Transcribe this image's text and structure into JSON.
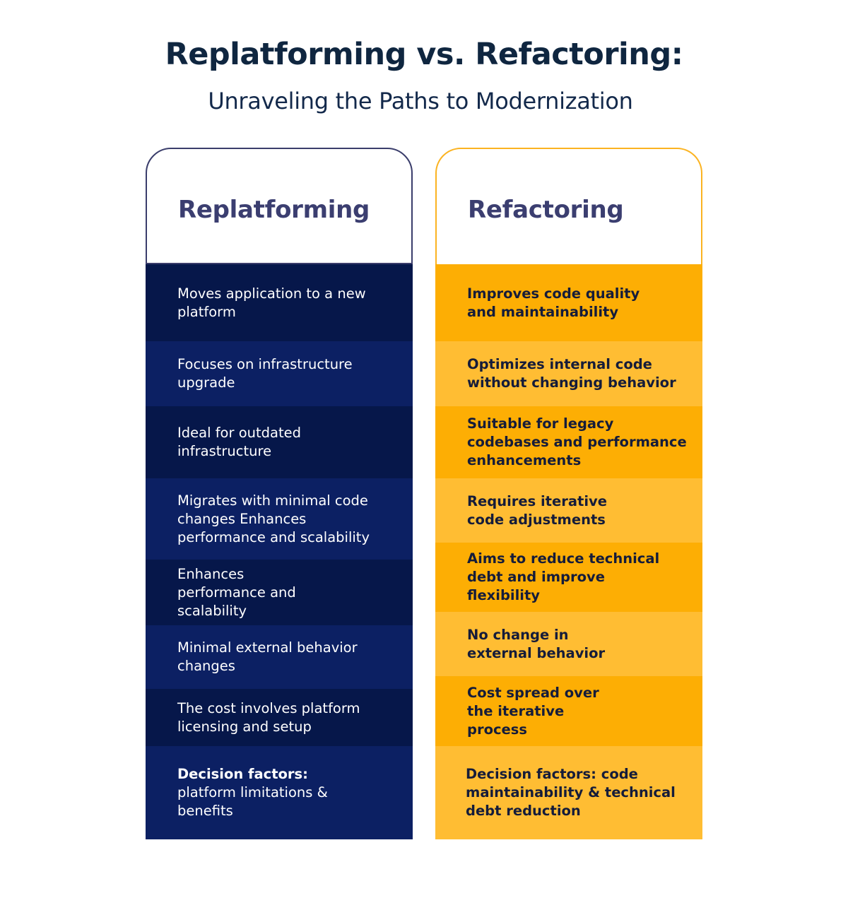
{
  "title": "Replatforming vs. Refactoring:",
  "subtitle": "Unraveling the Paths to Modernization",
  "replatforming": {
    "heading": "Replatforming",
    "rows": [
      "Moves application to a new platform",
      "Focuses on infrastructure upgrade",
      "Ideal for outdated infrastructure",
      "Migrates with minimal code changes Enhances performance and scalability",
      "Enhances performance and scalability",
      "Minimal external behavior changes",
      "The cost involves platform licensing and setup"
    ],
    "decision_label": "Decision factors:",
    "decision_text": " platform limitations & benefits"
  },
  "refactoring": {
    "heading": "Refactoring",
    "rows": [
      "Improves code quality and maintainability",
      "Optimizes internal code without changing behavior",
      "Suitable for legacy codebases and performance enhancements",
      "Requires iterative code adjustments",
      "Aims to reduce technical debt and improve flexibility",
      "No change in external behavior",
      "Cost spread over the iterative process"
    ],
    "decision_label": "Decision factors:",
    "decision_text": " code maintainability & technical debt reduction"
  },
  "colors": {
    "replatforming_dark": "#06174a",
    "replatforming_light": "#0c2063",
    "refactoring_dark": "#fdae04",
    "refactoring_light": "#ffbd33",
    "title": "#0f2640",
    "heading": "#3b3e70"
  }
}
